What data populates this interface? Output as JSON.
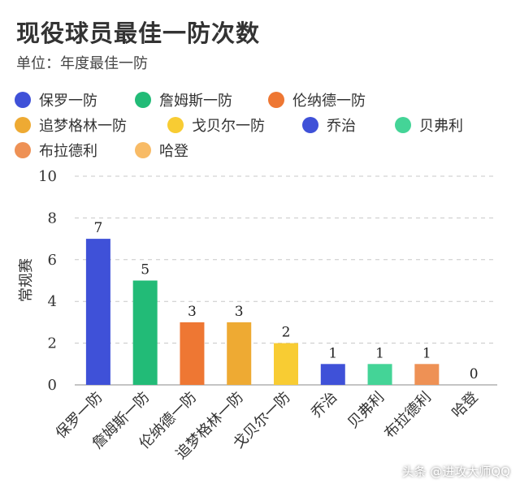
{
  "chart_data": {
    "type": "bar",
    "title": "现役球员最佳一防次数",
    "subtitle": "单位：年度最佳一防",
    "ylabel": "常规赛",
    "ylim": [
      0,
      10
    ],
    "yticks": [
      0,
      2,
      4,
      6,
      8,
      10
    ],
    "grid": true,
    "legend_position": "top",
    "categories": [
      "保罗一防",
      "詹姆斯一防",
      "伦纳德一防",
      "追梦格林一防",
      "戈贝尔一防",
      "乔治",
      "贝弗利",
      "布拉德利",
      "哈登"
    ],
    "values": [
      7,
      5,
      3,
      3,
      2,
      1,
      1,
      1,
      0
    ],
    "colors": [
      "#3f51d8",
      "#22bb77",
      "#ee7733",
      "#eeaa33",
      "#f8cc33",
      "#3f51d8",
      "#44d497",
      "#ee9155",
      "#f8bb66"
    ]
  },
  "watermark": "头条 @进攻大师QQ"
}
